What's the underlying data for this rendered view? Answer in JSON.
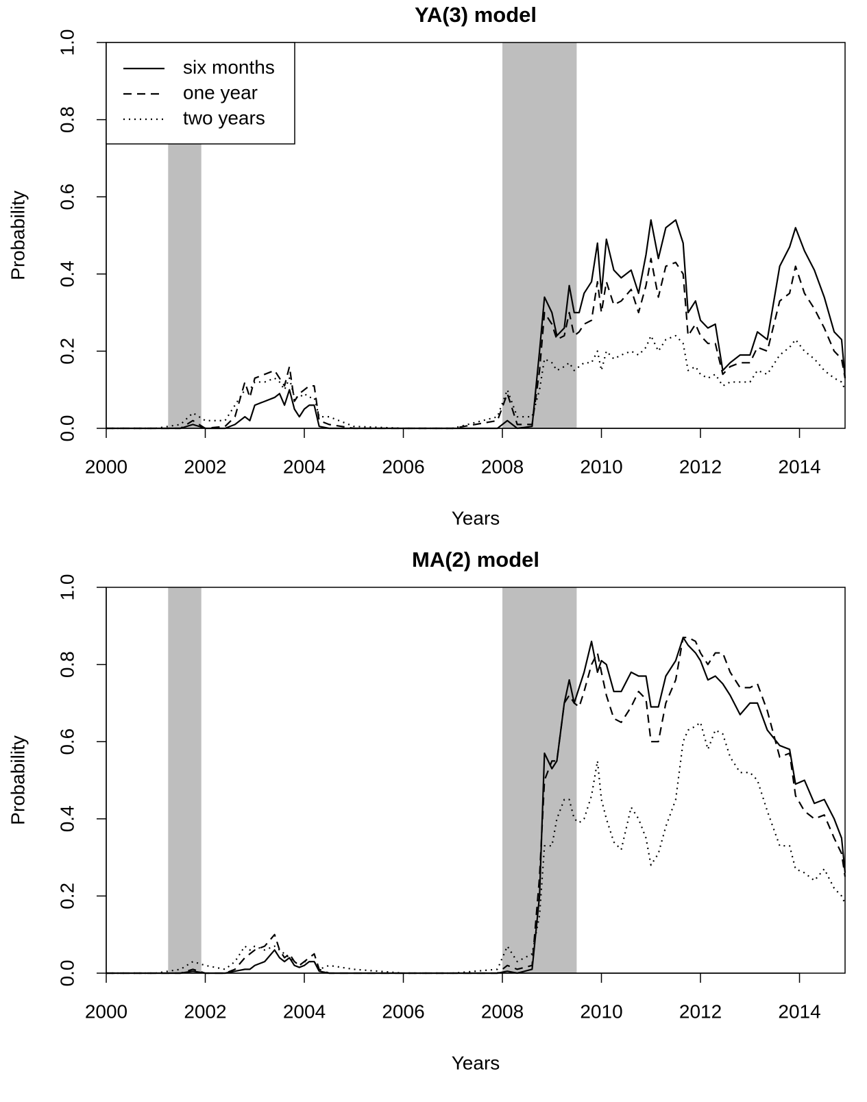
{
  "chart_data": [
    {
      "type": "line",
      "title": "YA(3) model",
      "xlabel": "Years",
      "ylabel": "Probability",
      "xlim": [
        2000,
        2014.92
      ],
      "ylim": [
        0,
        1
      ],
      "xticks": [
        2000,
        2002,
        2004,
        2006,
        2008,
        2010,
        2012,
        2014
      ],
      "yticks": [
        {
          "value": 0,
          "label": "0.0"
        },
        0.2,
        0.4,
        0.6,
        0.8,
        {
          "value": 1,
          "label": "1.0"
        }
      ],
      "shaded_regions": [
        [
          2001.25,
          2001.92
        ],
        [
          2008.0,
          2009.5
        ]
      ],
      "shade_color": "#bebebe",
      "legend": "top-left",
      "x": [
        2000,
        2001,
        2001.5,
        2001.75,
        2002,
        2002.4,
        2002.6,
        2002.8,
        2002.9,
        2003,
        2003.2,
        2003.4,
        2003.5,
        2003.6,
        2003.7,
        2003.8,
        2003.9,
        2004,
        2004.1,
        2004.2,
        2004.3,
        2004.5,
        2005,
        2006,
        2007,
        2007.9,
        2008.1,
        2008.3,
        2008.6,
        2008.75,
        2008.85,
        2009,
        2009.1,
        2009.25,
        2009.35,
        2009.45,
        2009.55,
        2009.65,
        2009.8,
        2009.92,
        2010,
        2010.1,
        2010.25,
        2010.4,
        2010.6,
        2010.75,
        2010.9,
        2011,
        2011.15,
        2011.3,
        2011.5,
        2011.65,
        2011.75,
        2011.9,
        2012,
        2012.15,
        2012.3,
        2012.45,
        2012.6,
        2012.8,
        2013,
        2013.15,
        2013.35,
        2013.6,
        2013.8,
        2013.92,
        2014.1,
        2014.3,
        2014.5,
        2014.7,
        2014.85,
        2014.92
      ],
      "series": [
        {
          "name": "six months",
          "color": "#000000",
          "linestyle": "solid",
          "values": [
            0,
            0,
            0,
            0.01,
            0,
            0,
            0.01,
            0.03,
            0.02,
            0.06,
            0.07,
            0.08,
            0.09,
            0.06,
            0.1,
            0.05,
            0.03,
            0.05,
            0.06,
            0.06,
            0.005,
            0,
            0,
            0,
            0,
            0,
            0.02,
            0,
            0.005,
            0.2,
            0.34,
            0.3,
            0.24,
            0.26,
            0.37,
            0.3,
            0.3,
            0.35,
            0.38,
            0.48,
            0.35,
            0.49,
            0.41,
            0.39,
            0.41,
            0.35,
            0.45,
            0.54,
            0.44,
            0.52,
            0.54,
            0.48,
            0.3,
            0.33,
            0.28,
            0.26,
            0.27,
            0.15,
            0.17,
            0.19,
            0.19,
            0.25,
            0.23,
            0.42,
            0.47,
            0.52,
            0.46,
            0.41,
            0.34,
            0.25,
            0.23,
            0.13
          ]
        },
        {
          "name": "one year",
          "color": "#000000",
          "linestyle": "dashed",
          "values": [
            0,
            0,
            0,
            0.02,
            0,
            0.005,
            0.03,
            0.12,
            0.08,
            0.13,
            0.14,
            0.15,
            0.13,
            0.11,
            0.16,
            0.07,
            0.09,
            0.1,
            0.11,
            0.11,
            0.02,
            0.01,
            0,
            0,
            0,
            0.02,
            0.09,
            0.01,
            0.01,
            0.15,
            0.3,
            0.27,
            0.23,
            0.24,
            0.3,
            0.24,
            0.25,
            0.27,
            0.28,
            0.38,
            0.3,
            0.38,
            0.32,
            0.33,
            0.36,
            0.3,
            0.37,
            0.44,
            0.34,
            0.42,
            0.43,
            0.4,
            0.24,
            0.27,
            0.24,
            0.22,
            0.22,
            0.14,
            0.16,
            0.17,
            0.17,
            0.21,
            0.2,
            0.33,
            0.35,
            0.42,
            0.35,
            0.31,
            0.26,
            0.2,
            0.18,
            0.13
          ]
        },
        {
          "name": "two years",
          "color": "#000000",
          "linestyle": "dotted",
          "values": [
            0,
            0,
            0.01,
            0.04,
            0.02,
            0.02,
            0.06,
            0.1,
            0.1,
            0.12,
            0.12,
            0.13,
            0.12,
            0.1,
            0.13,
            0.08,
            0.08,
            0.09,
            0.08,
            0.08,
            0.03,
            0.03,
            0.005,
            0,
            0,
            0.03,
            0.1,
            0.03,
            0.03,
            0.1,
            0.18,
            0.17,
            0.15,
            0.16,
            0.17,
            0.15,
            0.16,
            0.17,
            0.17,
            0.2,
            0.15,
            0.2,
            0.18,
            0.19,
            0.2,
            0.19,
            0.21,
            0.24,
            0.2,
            0.23,
            0.24,
            0.22,
            0.15,
            0.16,
            0.14,
            0.13,
            0.14,
            0.11,
            0.12,
            0.12,
            0.12,
            0.15,
            0.14,
            0.19,
            0.21,
            0.23,
            0.2,
            0.18,
            0.15,
            0.13,
            0.12,
            0.1
          ]
        }
      ]
    },
    {
      "type": "line",
      "title": "MA(2) model",
      "xlabel": "Years",
      "ylabel": "Probability",
      "xlim": [
        2000,
        2014.92
      ],
      "ylim": [
        0,
        1
      ],
      "xticks": [
        2000,
        2002,
        2004,
        2006,
        2008,
        2010,
        2012,
        2014
      ],
      "yticks": [
        {
          "value": 0,
          "label": "0.0"
        },
        0.2,
        0.4,
        0.6,
        0.8,
        {
          "value": 1,
          "label": "1.0"
        }
      ],
      "shaded_regions": [
        [
          2001.25,
          2001.92
        ],
        [
          2008.0,
          2009.5
        ]
      ],
      "shade_color": "#bebebe",
      "x": [
        2000,
        2001,
        2001.5,
        2001.75,
        2002,
        2002.4,
        2002.6,
        2002.8,
        2002.9,
        2003,
        2003.2,
        2003.4,
        2003.5,
        2003.6,
        2003.7,
        2003.8,
        2003.9,
        2004,
        2004.1,
        2004.2,
        2004.3,
        2004.5,
        2005,
        2006,
        2007,
        2007.9,
        2008.1,
        2008.3,
        2008.6,
        2008.75,
        2008.85,
        2009,
        2009.1,
        2009.25,
        2009.35,
        2009.45,
        2009.55,
        2009.65,
        2009.8,
        2009.92,
        2010,
        2010.1,
        2010.25,
        2010.4,
        2010.6,
        2010.75,
        2010.9,
        2011,
        2011.15,
        2011.3,
        2011.5,
        2011.65,
        2011.75,
        2011.9,
        2012,
        2012.15,
        2012.3,
        2012.45,
        2012.6,
        2012.8,
        2013,
        2013.15,
        2013.35,
        2013.6,
        2013.8,
        2013.92,
        2014.1,
        2014.3,
        2014.5,
        2014.7,
        2014.85,
        2014.92
      ],
      "series": [
        {
          "color": "#000000",
          "linestyle": "solid",
          "values": [
            0,
            0,
            0,
            0.005,
            0,
            0,
            0.005,
            0.01,
            0.01,
            0.02,
            0.03,
            0.06,
            0.04,
            0.03,
            0.04,
            0.02,
            0.015,
            0.02,
            0.03,
            0.03,
            0.005,
            0,
            0,
            0,
            0,
            0,
            0.005,
            0,
            0.01,
            0.2,
            0.57,
            0.53,
            0.55,
            0.7,
            0.76,
            0.7,
            0.74,
            0.78,
            0.86,
            0.78,
            0.81,
            0.8,
            0.73,
            0.73,
            0.78,
            0.77,
            0.77,
            0.69,
            0.69,
            0.77,
            0.81,
            0.87,
            0.85,
            0.83,
            0.81,
            0.76,
            0.77,
            0.75,
            0.72,
            0.67,
            0.7,
            0.7,
            0.63,
            0.59,
            0.58,
            0.49,
            0.5,
            0.44,
            0.45,
            0.4,
            0.35,
            0.26
          ]
        },
        {
          "color": "#000000",
          "linestyle": "dashed",
          "values": [
            0,
            0,
            0,
            0.01,
            0,
            0,
            0.01,
            0.04,
            0.05,
            0.06,
            0.07,
            0.1,
            0.06,
            0.04,
            0.05,
            0.03,
            0.02,
            0.03,
            0.04,
            0.05,
            0.01,
            0,
            0,
            0,
            0,
            0,
            0.02,
            0.01,
            0.02,
            0.25,
            0.5,
            0.55,
            0.55,
            0.7,
            0.72,
            0.7,
            0.69,
            0.73,
            0.8,
            0.83,
            0.78,
            0.72,
            0.66,
            0.65,
            0.69,
            0.73,
            0.71,
            0.6,
            0.6,
            0.7,
            0.76,
            0.87,
            0.87,
            0.86,
            0.83,
            0.8,
            0.83,
            0.83,
            0.78,
            0.74,
            0.74,
            0.75,
            0.68,
            0.56,
            0.57,
            0.46,
            0.42,
            0.4,
            0.41,
            0.35,
            0.31,
            0.25
          ]
        },
        {
          "color": "#000000",
          "linestyle": "dotted",
          "values": [
            0,
            0,
            0.01,
            0.03,
            0.02,
            0.01,
            0.03,
            0.07,
            0.06,
            0.07,
            0.06,
            0.07,
            0.06,
            0.05,
            0.04,
            0.03,
            0.02,
            0.03,
            0.03,
            0.03,
            0.01,
            0.02,
            0.01,
            0,
            0,
            0.01,
            0.07,
            0.03,
            0.05,
            0.15,
            0.33,
            0.33,
            0.4,
            0.45,
            0.45,
            0.4,
            0.39,
            0.4,
            0.46,
            0.55,
            0.45,
            0.4,
            0.34,
            0.32,
            0.43,
            0.4,
            0.35,
            0.28,
            0.31,
            0.38,
            0.45,
            0.6,
            0.63,
            0.64,
            0.65,
            0.58,
            0.63,
            0.62,
            0.56,
            0.52,
            0.52,
            0.5,
            0.42,
            0.33,
            0.33,
            0.27,
            0.26,
            0.24,
            0.27,
            0.22,
            0.2,
            0.18
          ]
        }
      ]
    }
  ]
}
